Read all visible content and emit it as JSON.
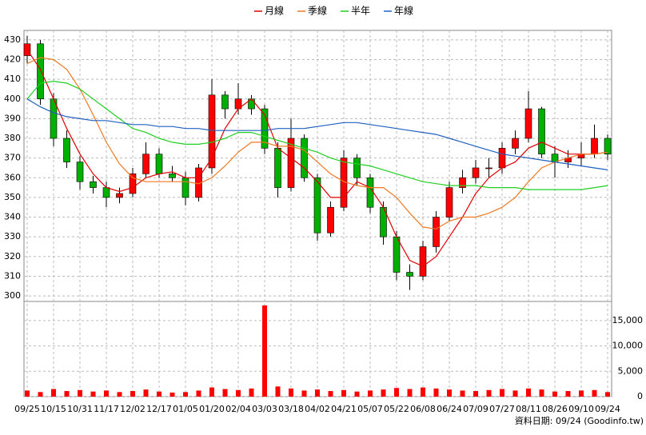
{
  "chart_data": {
    "type": "candlestick",
    "categories": [
      "09/25",
      null,
      "10/15",
      null,
      "10/31",
      null,
      "11/17",
      null,
      "12/02",
      null,
      "12/17",
      null,
      "01/05",
      null,
      "01/20",
      null,
      "02/04",
      null,
      "03/03",
      null,
      "03/18",
      null,
      "04/02",
      null,
      "04/21",
      null,
      "05/07",
      null,
      "05/22",
      null,
      "06/08",
      null,
      "06/24",
      null,
      "07/09",
      null,
      "07/27",
      null,
      "08/11",
      null,
      "08/26",
      null,
      "09/10",
      null,
      "09/24"
    ],
    "open": [
      422,
      428,
      400,
      380,
      368,
      358,
      355,
      350,
      352,
      362,
      372,
      362,
      360,
      350,
      365,
      402,
      395,
      400,
      395,
      375,
      355,
      380,
      360,
      332,
      345,
      370,
      360,
      345,
      330,
      312,
      310,
      325,
      340,
      355,
      360,
      365,
      365,
      375,
      380,
      395,
      372,
      368,
      370,
      372,
      380
    ],
    "high": [
      432,
      430,
      403,
      384,
      371,
      361,
      358,
      355,
      365,
      378,
      375,
      366,
      363,
      367,
      410,
      404,
      408,
      402,
      397,
      378,
      390,
      382,
      362,
      348,
      374,
      372,
      362,
      348,
      333,
      316,
      328,
      343,
      358,
      364,
      369,
      370,
      378,
      384,
      404,
      396,
      376,
      374,
      378,
      387,
      382
    ],
    "low": [
      418,
      397,
      376,
      365,
      354,
      352,
      345,
      347,
      350,
      360,
      360,
      358,
      346,
      348,
      362,
      390,
      392,
      392,
      372,
      350,
      353,
      358,
      328,
      330,
      343,
      356,
      342,
      326,
      308,
      303,
      308,
      322,
      338,
      352,
      357,
      360,
      362,
      372,
      378,
      370,
      360,
      365,
      366,
      370,
      369
    ],
    "close": [
      428,
      400,
      380,
      368,
      358,
      355,
      350,
      352,
      362,
      372,
      362,
      360,
      350,
      365,
      402,
      395,
      400,
      395,
      375,
      355,
      380,
      360,
      332,
      345,
      370,
      360,
      345,
      330,
      312,
      310,
      325,
      340,
      355,
      360,
      365,
      365,
      375,
      380,
      395,
      372,
      368,
      370,
      372,
      380,
      372
    ],
    "up_color": "#ff0000",
    "down_color": "#00b000",
    "series": [
      {
        "name": "月線",
        "color": "#e00000",
        "values": [
          425,
          415,
          400,
          385,
          372,
          362,
          355,
          353,
          355,
          360,
          362,
          363,
          360,
          360,
          370,
          385,
          395,
          400,
          392,
          375,
          370,
          365,
          358,
          350,
          350,
          358,
          355,
          345,
          330,
          318,
          315,
          320,
          330,
          340,
          352,
          360,
          365,
          368,
          375,
          378,
          375,
          372,
          372,
          372,
          373
        ]
      },
      {
        "name": "季線",
        "color": "#f07820",
        "values": [
          418,
          421,
          420,
          415,
          405,
          392,
          378,
          367,
          360,
          358,
          358,
          358,
          358,
          357,
          360,
          366,
          373,
          378,
          378,
          376,
          376,
          374,
          368,
          362,
          358,
          356,
          355,
          355,
          350,
          342,
          335,
          334,
          338,
          340,
          340,
          342,
          345,
          350,
          358,
          365,
          368,
          370,
          372,
          372,
          373
        ]
      },
      {
        "name": "半年",
        "color": "#20d020",
        "values": [
          400,
          408,
          409,
          408,
          405,
          400,
          395,
          390,
          385,
          383,
          380,
          378,
          377,
          377,
          378,
          380,
          383,
          383,
          381,
          379,
          377,
          375,
          373,
          370,
          368,
          367,
          366,
          364,
          362,
          360,
          358,
          357,
          356,
          356,
          356,
          355,
          355,
          355,
          354,
          354,
          354,
          354,
          354,
          355,
          356
        ]
      },
      {
        "name": "年線",
        "color": "#2060c0",
        "values": [
          400,
          396,
          393,
          391,
          390,
          389,
          389,
          388,
          387,
          387,
          386,
          386,
          385,
          385,
          384,
          384,
          384,
          384,
          384,
          385,
          385,
          385,
          386,
          387,
          388,
          388,
          387,
          386,
          385,
          384,
          383,
          382,
          380,
          378,
          376,
          374,
          372,
          371,
          370,
          369,
          368,
          367,
          366,
          365,
          364
        ]
      }
    ],
    "volume": {
      "color": "#ff0000",
      "axis": "y2",
      "values": [
        1200,
        900,
        1500,
        1100,
        1300,
        1000,
        1200,
        900,
        1100,
        1400,
        1000,
        800,
        900,
        1200,
        1800,
        1500,
        1300,
        1600,
        18000,
        2000,
        1600,
        1200,
        1400,
        1100,
        1300,
        1000,
        1200,
        1400,
        1700,
        1500,
        1800,
        1600,
        1400,
        1200,
        1100,
        1300,
        1500,
        1200,
        1600,
        1400,
        1000,
        1100,
        1200,
        1300,
        900
      ]
    },
    "ylim": [
      298,
      434
    ],
    "yticks": [
      300,
      310,
      320,
      330,
      340,
      350,
      360,
      370,
      380,
      390,
      400,
      410,
      420,
      430
    ],
    "y2lim": [
      0,
      18300
    ],
    "y2ticks": [
      0,
      {
        "value": 5000,
        "label": "5,000"
      },
      {
        "value": 10000,
        "label": "10,000"
      },
      {
        "value": 15000,
        "label": "15,000"
      }
    ],
    "grid": true,
    "footnote": "資料日期: 09/24  (Goodinfo.tw)"
  }
}
